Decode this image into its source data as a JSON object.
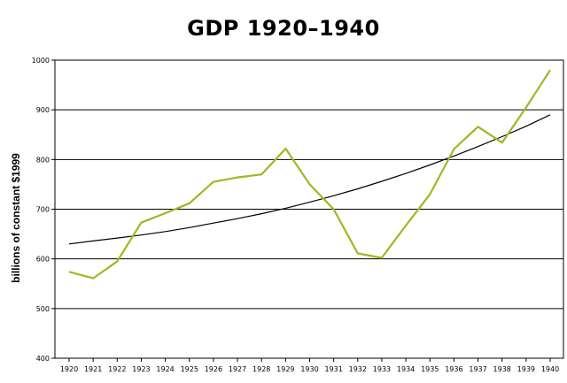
{
  "chart_data": {
    "type": "line",
    "title": "GDP 1920–1940",
    "xlabel": "",
    "ylabel": "billions of constant $1999",
    "ylim": [
      400,
      1000
    ],
    "y_ticks": [
      400,
      500,
      600,
      700,
      800,
      900,
      1000
    ],
    "grid": "horizontal",
    "legend": "none",
    "x": [
      "1920",
      "1921",
      "1922",
      "1923",
      "1924",
      "1925",
      "1926",
      "1927",
      "1928",
      "1929",
      "1930",
      "1931",
      "1932",
      "1933",
      "1934",
      "1935",
      "1936",
      "1937",
      "1938",
      "1939",
      "1940"
    ],
    "series": [
      {
        "values": [
          574,
          561,
          595,
          673,
          692,
          712,
          755,
          764,
          770,
          822,
          750,
          700,
          611,
          602,
          667,
          730,
          821,
          866,
          834,
          905,
          980
        ],
        "color": "#99bb22"
      },
      {
        "values": [
          630,
          636,
          642,
          648,
          655,
          663,
          672,
          681,
          691,
          702,
          714,
          727,
          741,
          756,
          772,
          789,
          807,
          826,
          846,
          867,
          890
        ],
        "color": "#000000"
      }
    ]
  }
}
